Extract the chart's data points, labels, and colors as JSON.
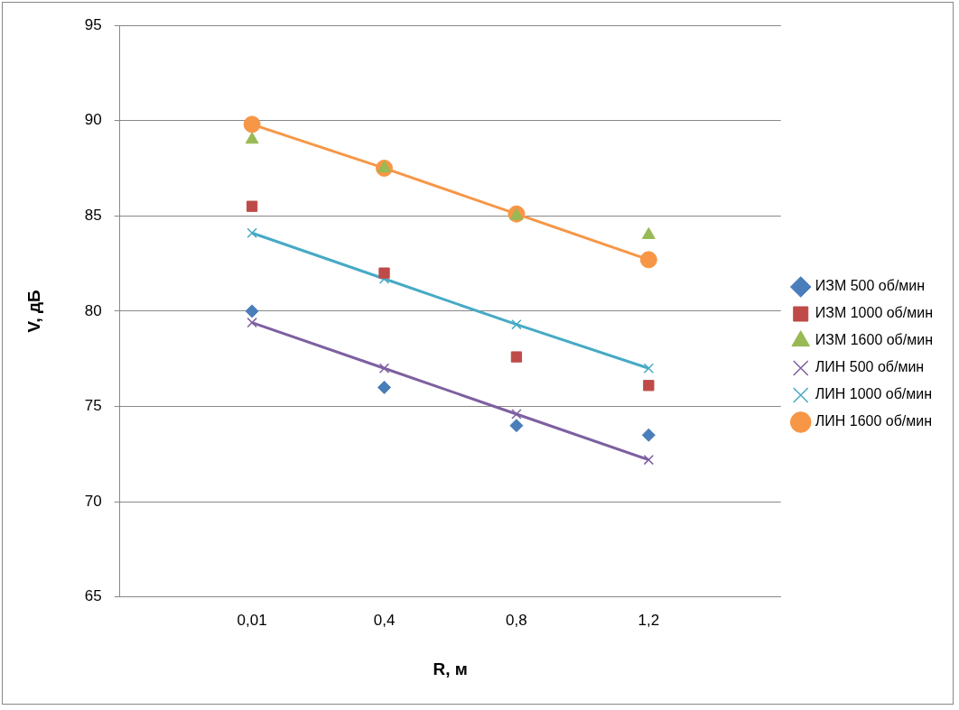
{
  "chart_data": {
    "type": "line",
    "xlabel": "R, м",
    "ylabel": "V, дБ",
    "categories": [
      null,
      "0,01",
      "0,4",
      "0,8",
      "1,2",
      null
    ],
    "ylim": [
      65,
      95
    ],
    "yticks": [
      65,
      70,
      75,
      80,
      85,
      90,
      95
    ],
    "grid": "y",
    "legend": "right",
    "series": [
      {
        "name": "ИЗМ 500 об/мин",
        "type": "scatter",
        "marker": "diamond",
        "color": "#4a7ebb",
        "values": [
          null,
          80,
          76,
          74,
          73.5,
          null
        ]
      },
      {
        "name": "ИЗМ 1000 об/мин",
        "type": "scatter",
        "marker": "square",
        "color": "#be4b48",
        "values": [
          null,
          85.5,
          82,
          77.6,
          76.1,
          null
        ]
      },
      {
        "name": "ИЗМ 1600 об/мин",
        "type": "scatter",
        "marker": "triangle",
        "color": "#98b954",
        "values": [
          null,
          89,
          87.5,
          85,
          84,
          null
        ]
      },
      {
        "name": "ЛИН 500 об/мин",
        "type": "line",
        "marker": "cross",
        "color": "#7d60a0",
        "values": [
          null,
          79.4,
          77,
          74.6,
          72.2,
          null
        ]
      },
      {
        "name": "ЛИН 1000 об/мин",
        "type": "line",
        "marker": "cross",
        "color": "#46aac5",
        "values": [
          null,
          84.1,
          81.7,
          79.3,
          77,
          null
        ]
      },
      {
        "name": "ЛИН 1600 об/мин",
        "type": "line",
        "marker": "circle",
        "color": "#f79646",
        "values": [
          null,
          89.8,
          87.5,
          85.1,
          82.7,
          null
        ]
      }
    ]
  }
}
